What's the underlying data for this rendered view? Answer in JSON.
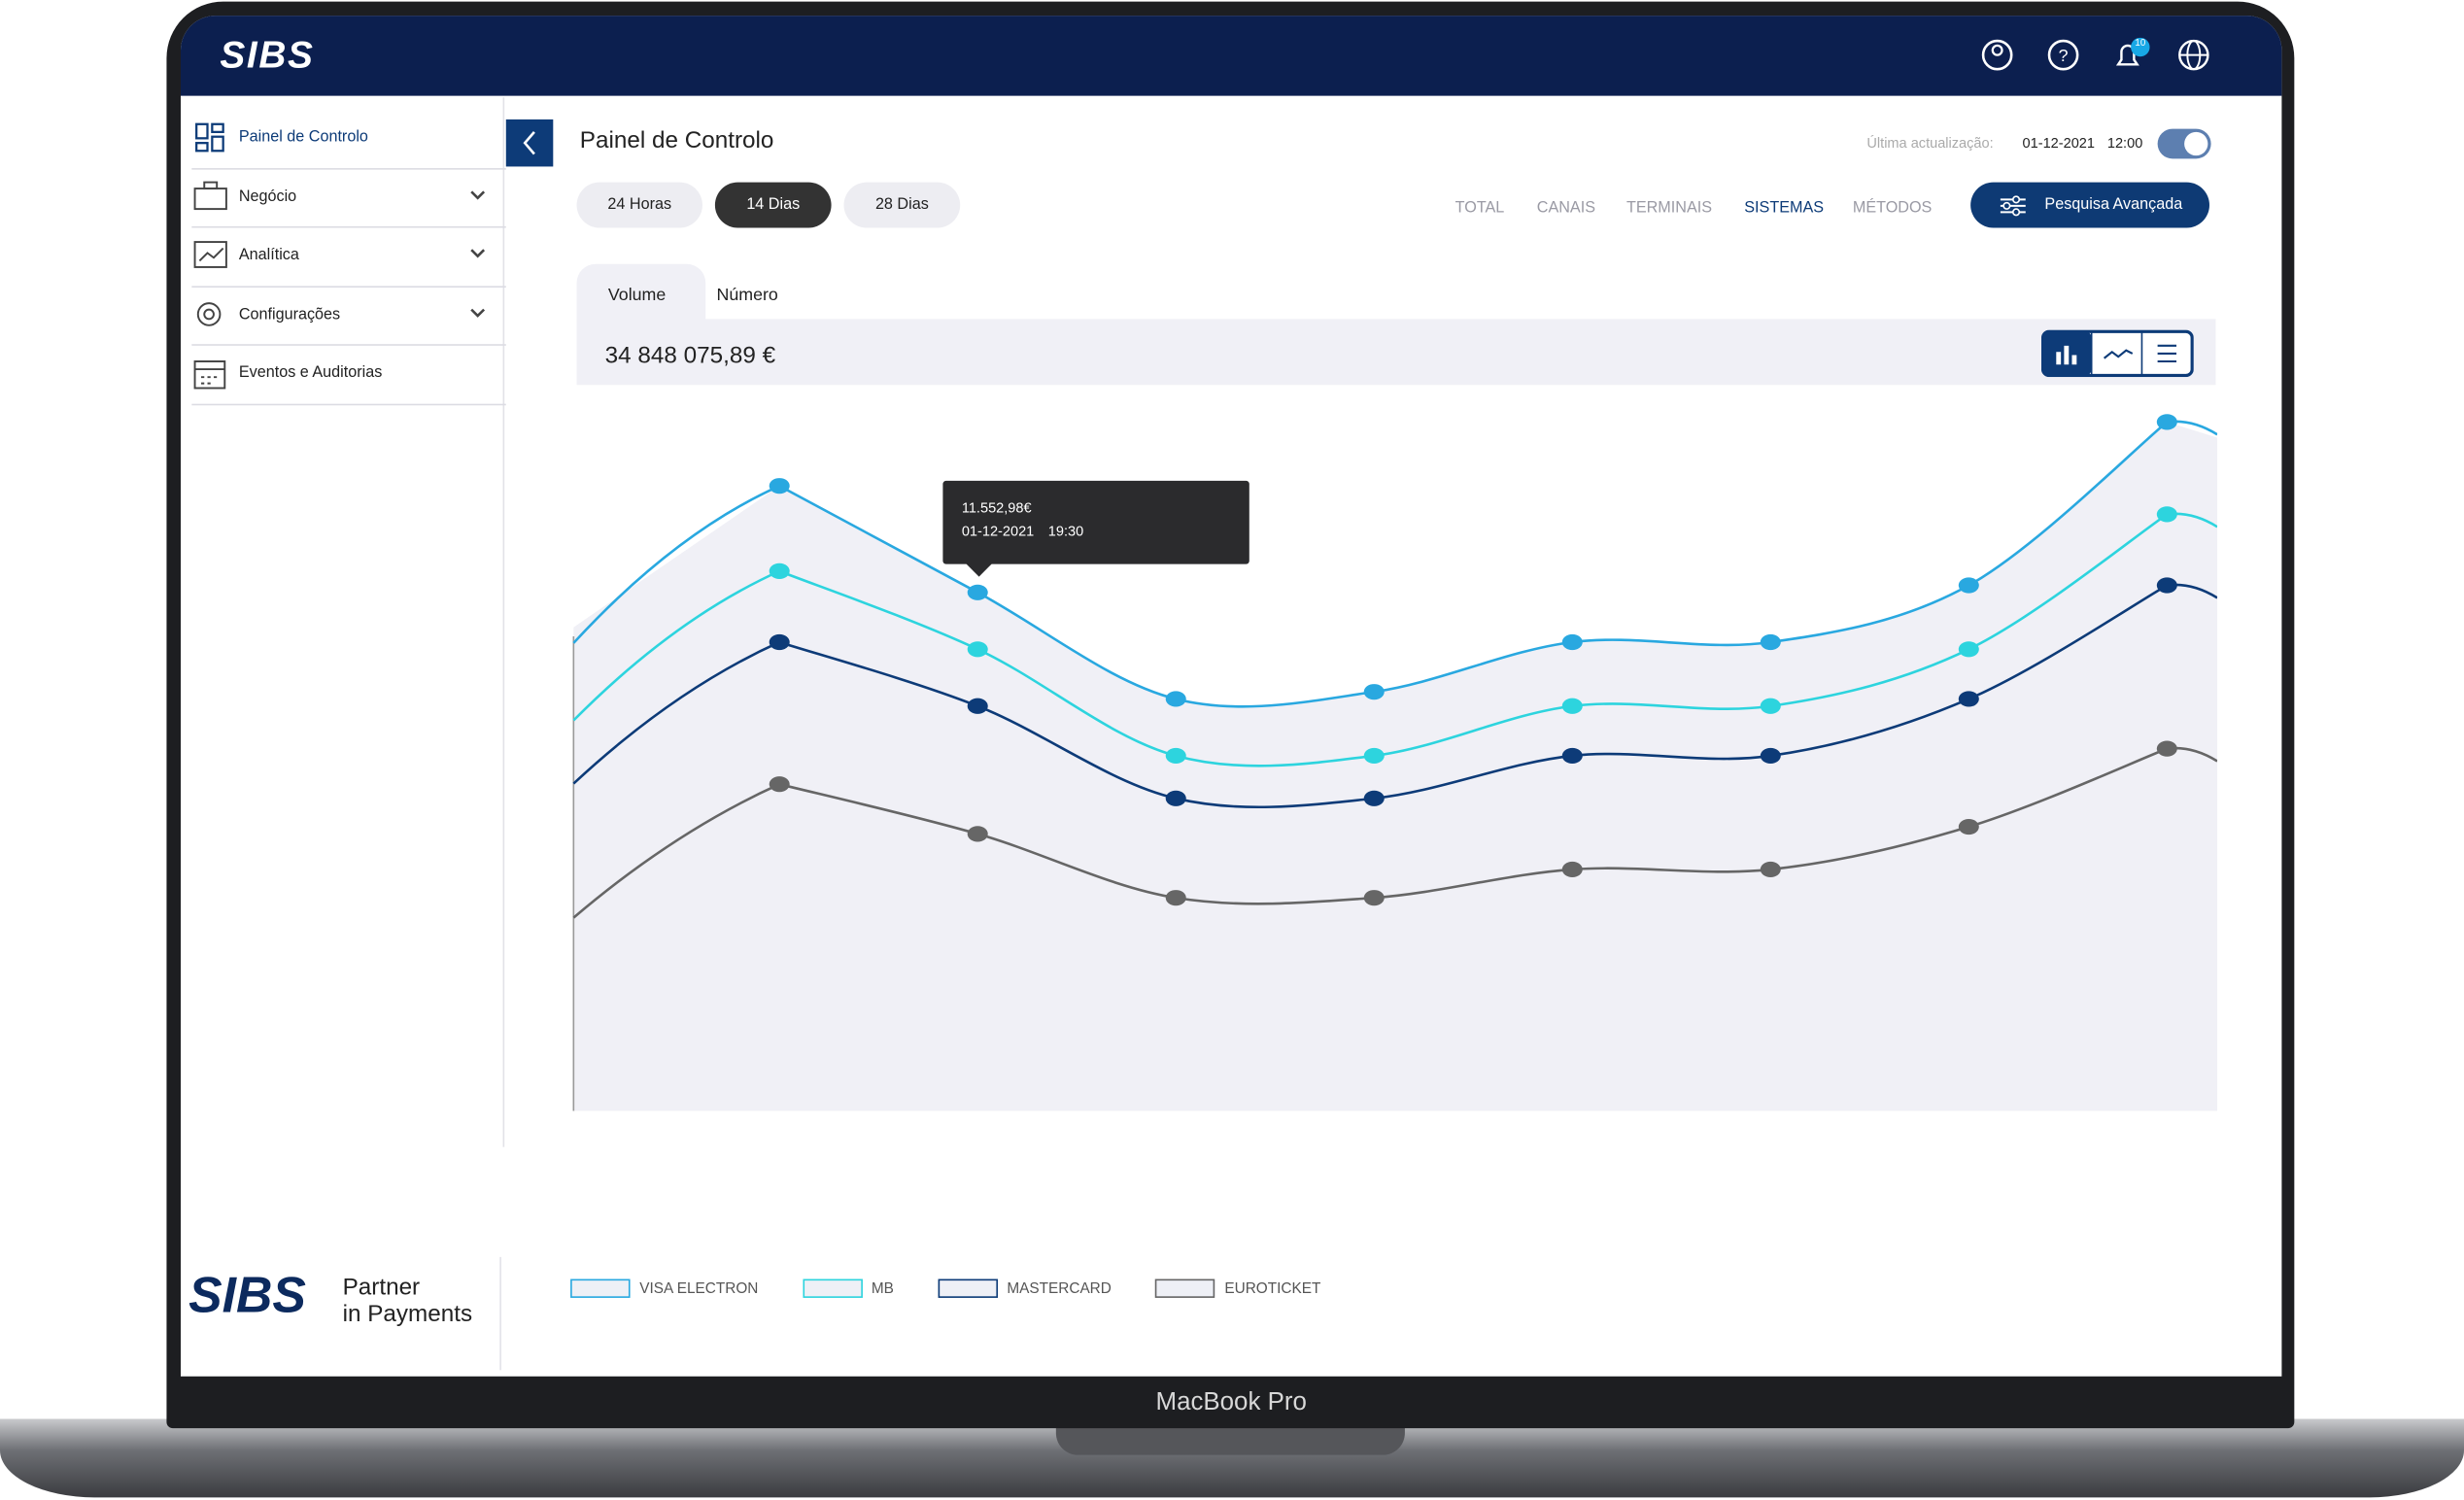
{
  "header": {
    "logo": "SIBS",
    "notifications": "10"
  },
  "sidebar": {
    "items": [
      {
        "label": "Painel de Controlo"
      },
      {
        "label": "Negócio"
      },
      {
        "label": "Analítica"
      },
      {
        "label": "Configurações"
      },
      {
        "label": "Eventos e Auditorias"
      }
    ],
    "footer": {
      "logo": "SIBS",
      "line1": "Partner",
      "line2": "in Payments"
    }
  },
  "main": {
    "title": "Painel de Controlo",
    "last_update_label": "Última actualização:",
    "last_update_date": "01-12-2021",
    "last_update_time": "12:00",
    "periods": [
      "24 Horas",
      "14 Dias",
      "28 Dias"
    ],
    "tabs": [
      "TOTAL",
      "CANAIS",
      "TERMINAIS",
      "SISTEMAS",
      "MÉTODOS"
    ],
    "search_button": "Pesquisa Avançada",
    "subtabs": [
      "Volume",
      "Número"
    ],
    "total": "34 848 075,89 €",
    "tooltip": {
      "value": "11.552,98€",
      "date": "01-12-2021",
      "time": "19:30"
    }
  },
  "chart_data": {
    "type": "line",
    "categories": [
      null,
      null,
      null,
      null,
      null,
      null,
      null,
      null
    ],
    "ylim": [
      0,
      100
    ],
    "series": [
      {
        "name": "VISA ELECTRON",
        "color": "#29a8e0",
        "values": [
          88,
          73,
          58,
          59,
          66,
          66,
          74,
          97
        ]
      },
      {
        "name": "MB",
        "color": "#2dd4de",
        "values": [
          76,
          65,
          50,
          50,
          57,
          57,
          65,
          84
        ]
      },
      {
        "name": "MASTERCARD",
        "color": "#0d3b78",
        "values": [
          66,
          57,
          44,
          44,
          50,
          50,
          58,
          74
        ]
      },
      {
        "name": "EUROTICKET",
        "color": "#666666",
        "values": [
          46,
          39,
          30,
          30,
          34,
          34,
          40,
          51
        ]
      }
    ]
  },
  "device": {
    "label": "MacBook Pro"
  }
}
